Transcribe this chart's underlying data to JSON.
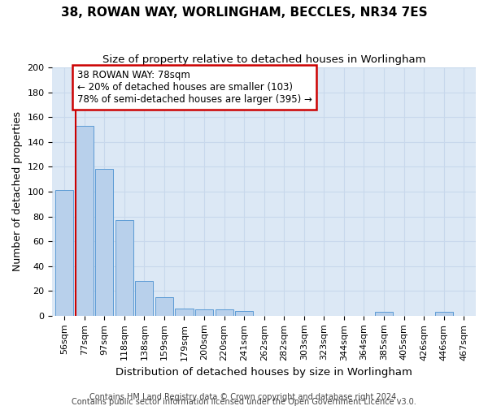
{
  "title1": "38, ROWAN WAY, WORLINGHAM, BECCLES, NR34 7ES",
  "title2": "Size of property relative to detached houses in Worlingham",
  "xlabel": "Distribution of detached houses by size in Worlingham",
  "ylabel": "Number of detached properties",
  "footer1": "Contains HM Land Registry data © Crown copyright and database right 2024.",
  "footer2": "Contains public sector information licensed under the Open Government Licence v3.0.",
  "bar_labels": [
    "56sqm",
    "77sqm",
    "97sqm",
    "118sqm",
    "138sqm",
    "159sqm",
    "179sqm",
    "200sqm",
    "220sqm",
    "241sqm",
    "262sqm",
    "282sqm",
    "303sqm",
    "323sqm",
    "344sqm",
    "364sqm",
    "385sqm",
    "405sqm",
    "426sqm",
    "446sqm",
    "467sqm"
  ],
  "bar_values": [
    101,
    153,
    118,
    77,
    28,
    15,
    6,
    5,
    5,
    4,
    0,
    0,
    0,
    0,
    0,
    0,
    3,
    0,
    0,
    3,
    0
  ],
  "bar_color": "#b8d0eb",
  "bar_edge_color": "#5b9bd5",
  "grid_color": "#c8d8ec",
  "background_color": "#dce8f5",
  "marker_bin_index": 1,
  "marker_line_color": "#cc0000",
  "annotation_line1": "38 ROWAN WAY: 78sqm",
  "annotation_line2": "← 20% of detached houses are smaller (103)",
  "annotation_line3": "78% of semi-detached houses are larger (395) →",
  "annotation_box_color": "#ffffff",
  "annotation_box_edge_color": "#cc0000",
  "ylim": [
    0,
    200
  ],
  "yticks": [
    0,
    20,
    40,
    60,
    80,
    100,
    120,
    140,
    160,
    180,
    200
  ],
  "title1_fontsize": 11,
  "title2_fontsize": 9.5,
  "ylabel_fontsize": 9,
  "xlabel_fontsize": 9.5,
  "tick_fontsize": 8,
  "footer_fontsize": 7,
  "annot_fontsize": 8.5
}
